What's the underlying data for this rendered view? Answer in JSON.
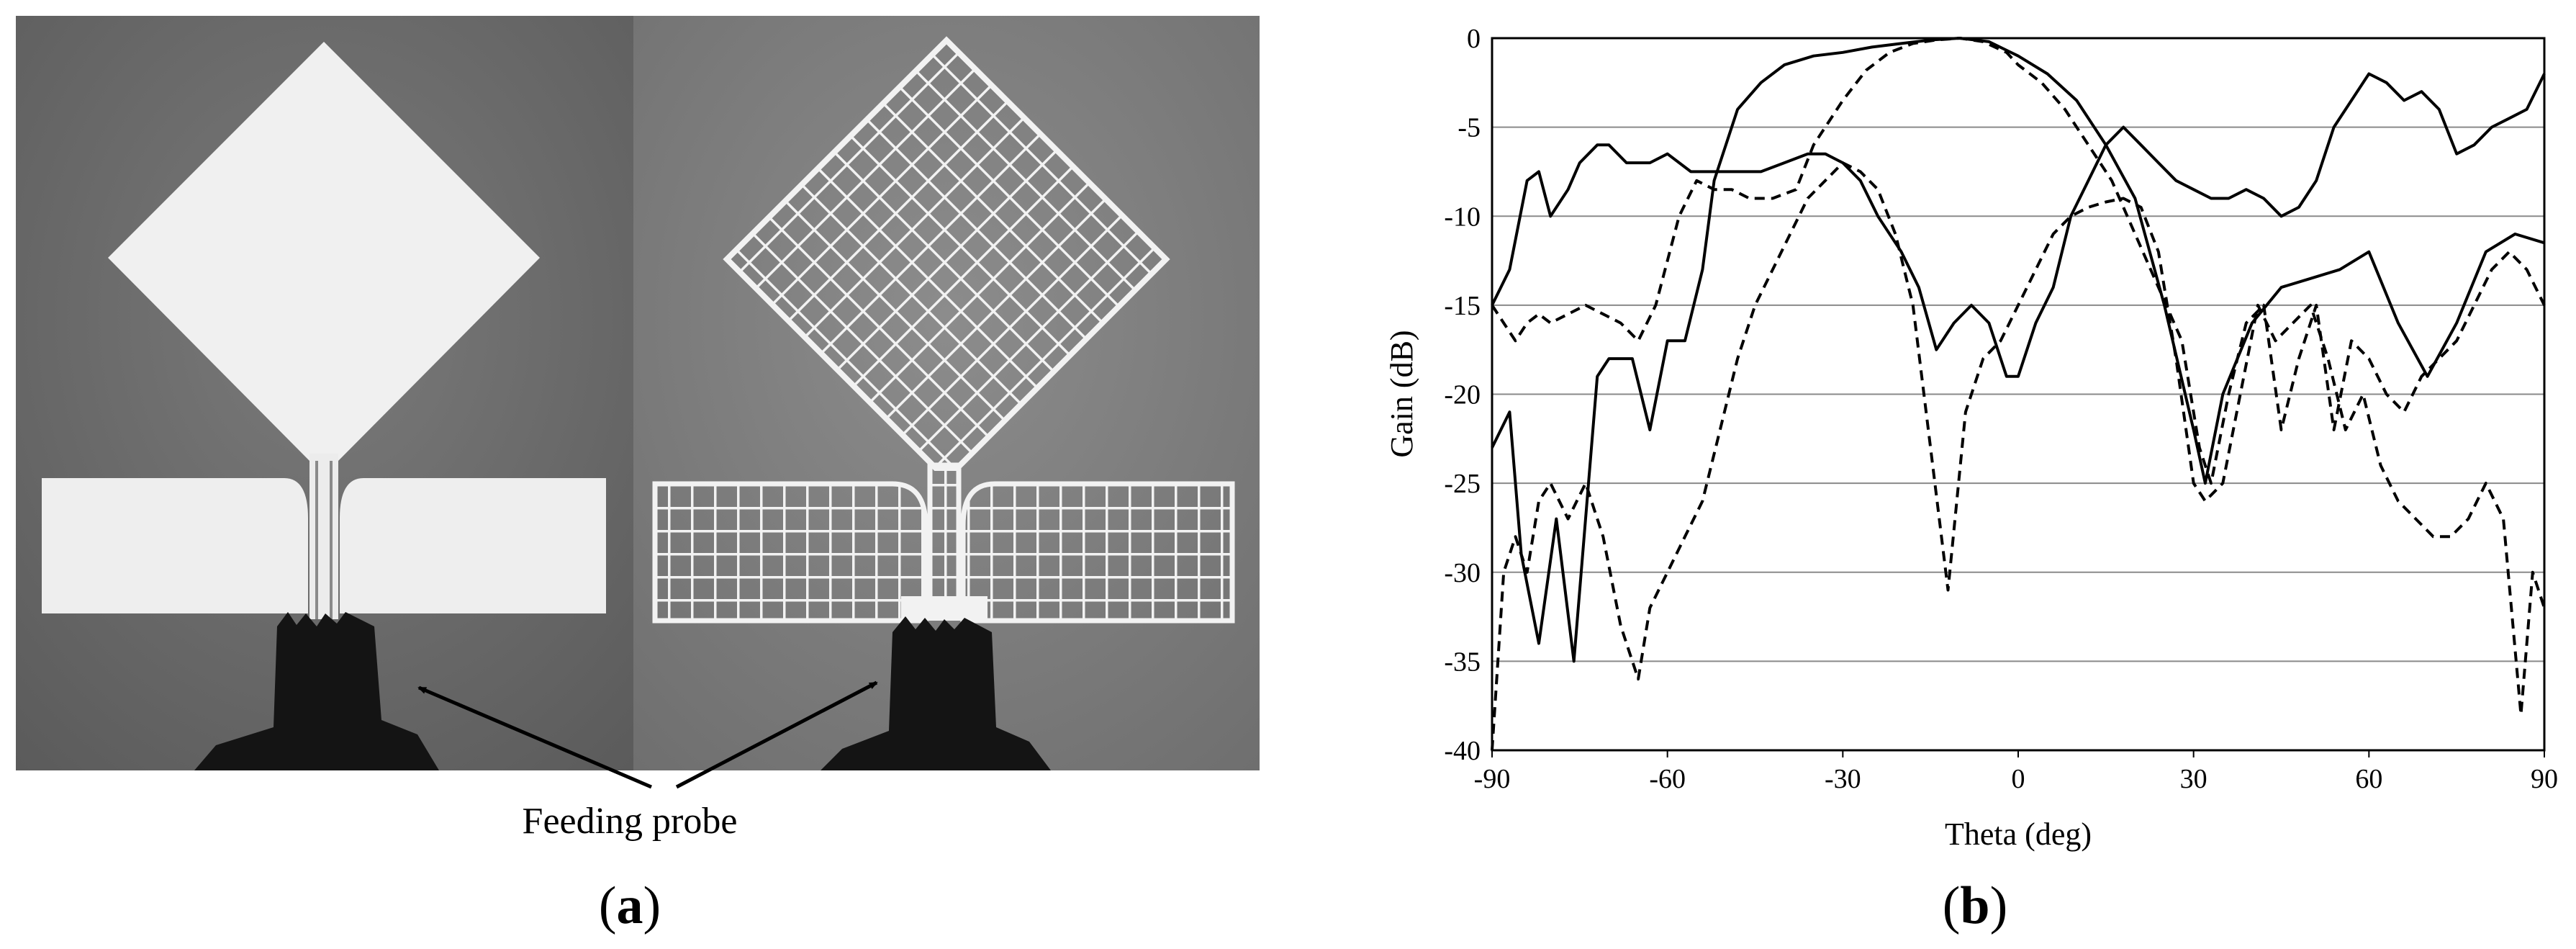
{
  "panel_a": {
    "caption": "(a)",
    "caption_letter": "a",
    "annotation": "Feeding probe"
  },
  "panel_b": {
    "caption": "(b)",
    "caption_letter": "b"
  },
  "chart_data": {
    "type": "line",
    "xlabel": "Theta (deg)",
    "ylabel": "Gain (dB)",
    "xlim": [
      -90,
      90
    ],
    "ylim": [
      -40,
      0
    ],
    "xticks": [
      -90,
      -60,
      -30,
      0,
      30,
      60,
      90
    ],
    "yticks": [
      0,
      -5,
      -10,
      -15,
      -20,
      -25,
      -30,
      -35,
      -40
    ],
    "grid": "horizontal",
    "series": [
      {
        "style": "solid",
        "x": [
          -90,
          -87,
          -85,
          -82,
          -79,
          -76,
          -72,
          -70,
          -66,
          -63,
          -60,
          -57,
          -54,
          -52,
          -48,
          -44,
          -40,
          -35,
          -30,
          -25,
          -20,
          -15,
          -10,
          -5,
          0,
          5,
          10,
          15,
          20,
          25,
          30,
          32,
          35,
          40,
          45,
          50,
          55,
          60,
          65,
          70,
          75,
          80,
          85,
          90
        ],
        "y": [
          -23,
          -21,
          -29,
          -34,
          -27,
          -35,
          -19,
          -18,
          -18,
          -22,
          -17,
          -17,
          -13,
          -8,
          -4,
          -2.5,
          -1.5,
          -1,
          -0.8,
          -0.5,
          -0.3,
          -0.1,
          0,
          -0.2,
          -1,
          -2,
          -3.5,
          -6,
          -9,
          -15,
          -22,
          -25,
          -20,
          -16,
          -14,
          -13.5,
          -13,
          -12,
          -16,
          -19,
          -16,
          -12,
          -11,
          -11.5
        ]
      },
      {
        "style": "solid",
        "x": [
          -90,
          -87,
          -84,
          -82,
          -80,
          -77,
          -75,
          -72,
          -70,
          -67,
          -63,
          -60,
          -56,
          -52,
          -48,
          -44,
          -40,
          -36,
          -33,
          -30,
          -27,
          -24,
          -20,
          -17,
          -14,
          -11,
          -8,
          -5,
          -2,
          0,
          3,
          6,
          9,
          12,
          15,
          18,
          21,
          24,
          27,
          30,
          33,
          36,
          39,
          42,
          45,
          48,
          51,
          54,
          57,
          60,
          63,
          66,
          69,
          72,
          75,
          78,
          81,
          84,
          87,
          90
        ],
        "y": [
          -15,
          -13,
          -8,
          -7.5,
          -10,
          -8.5,
          -7,
          -6,
          -6,
          -7,
          -7,
          -6.5,
          -7.5,
          -7.5,
          -7.5,
          -7.5,
          -7,
          -6.5,
          -6.5,
          -7,
          -8,
          -10,
          -12,
          -14,
          -17.5,
          -16,
          -15,
          -16,
          -19,
          -19,
          -16,
          -14,
          -10,
          -8,
          -6,
          -5,
          -6,
          -7,
          -8,
          -8.5,
          -9,
          -9,
          -8.5,
          -9,
          -10,
          -9.5,
          -8,
          -5,
          -3.5,
          -2,
          -2.5,
          -3.5,
          -3,
          -4,
          -6.5,
          -6,
          -5,
          -4.5,
          -4,
          -2
        ]
      },
      {
        "style": "dashed",
        "x": [
          -90,
          -88,
          -86,
          -84,
          -82,
          -80,
          -77,
          -74,
          -71,
          -68,
          -65,
          -63,
          -60,
          -57,
          -54,
          -51,
          -48,
          -45,
          -42,
          -39,
          -36,
          -33,
          -30,
          -27,
          -24,
          -21,
          -18,
          -15,
          -12,
          -9,
          -6,
          -3,
          0,
          3,
          6,
          9,
          12,
          15,
          18,
          21,
          24,
          27,
          30,
          32,
          35,
          38,
          41,
          44,
          47,
          50,
          53,
          56,
          59,
          62,
          65,
          68,
          71,
          74,
          77,
          80,
          83,
          86,
          88,
          90
        ],
        "y": [
          -40,
          -30,
          -28,
          -30,
          -26,
          -25,
          -27,
          -25,
          -28,
          -33,
          -36,
          -32,
          -30,
          -28,
          -26,
          -22,
          -18,
          -15,
          -13,
          -11,
          -9,
          -8,
          -7,
          -7.5,
          -8.5,
          -11,
          -15,
          -23,
          -31,
          -21,
          -18,
          -17,
          -15,
          -13,
          -11,
          -10,
          -9.5,
          -9.2,
          -9,
          -9.5,
          -12,
          -18,
          -25,
          -26,
          -25,
          -20,
          -15,
          -17,
          -16,
          -15,
          -18,
          -22,
          -20,
          -24,
          -26,
          -27,
          -28,
          -28,
          -27,
          -25,
          -27,
          -38,
          -30,
          -32
        ]
      },
      {
        "style": "dashed",
        "x": [
          -90,
          -88,
          -86,
          -84,
          -82,
          -80,
          -77,
          -74,
          -71,
          -68,
          -65,
          -62,
          -58,
          -55,
          -52,
          -49,
          -46,
          -42,
          -38,
          -35,
          -30,
          -26,
          -22,
          -18,
          -14,
          -10,
          -6,
          -2,
          0,
          4,
          8,
          12,
          16,
          20,
          24,
          28,
          31,
          33,
          36,
          39,
          42,
          45,
          48,
          51,
          54,
          57,
          60,
          63,
          66,
          69,
          72,
          75,
          78,
          81,
          84,
          87,
          90
        ],
        "y": [
          -15,
          -16,
          -17,
          -16,
          -15.5,
          -16,
          -15.5,
          -15,
          -15.5,
          -16,
          -17,
          -15,
          -10,
          -8,
          -8.5,
          -8.5,
          -9,
          -9,
          -8.5,
          -6,
          -3.5,
          -1.8,
          -0.8,
          -0.3,
          -0.1,
          0,
          -0.2,
          -0.8,
          -1.5,
          -2.5,
          -4,
          -6,
          -8,
          -11,
          -14,
          -17,
          -23,
          -25,
          -20,
          -16,
          -15,
          -22,
          -18,
          -15,
          -22,
          -17,
          -18,
          -20,
          -21,
          -19,
          -18,
          -17,
          -15,
          -13,
          -12,
          -13,
          -15
        ]
      }
    ]
  }
}
